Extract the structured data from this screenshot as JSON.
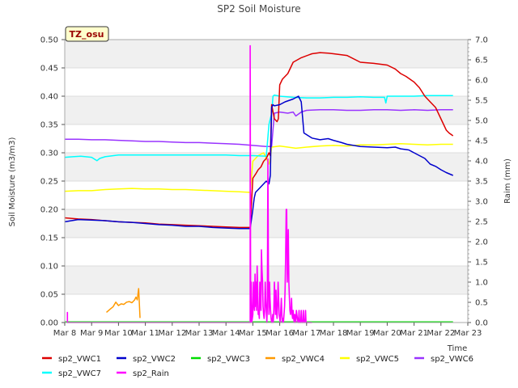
{
  "chart_data": {
    "type": "line",
    "title": "SP2 Soil Moisture",
    "xlabel": "Time",
    "ylabel": "Soil Moisture (m3/m3)",
    "y2label": "Raim (mm)",
    "badge": "TZ_osu",
    "xlim": [
      0,
      15
    ],
    "ylim": [
      0,
      0.5
    ],
    "y2lim": [
      0,
      7.0
    ],
    "x_ticks": [
      0,
      1,
      2,
      3,
      4,
      5,
      6,
      7,
      8,
      9,
      10,
      11,
      12,
      13,
      14,
      15
    ],
    "x_tick_labels": [
      "Mar 8",
      "Mar 9",
      "Mar 10",
      "Mar 11",
      "Mar 12",
      "Mar 13",
      "Mar 14",
      "Mar 15",
      "Mar 16",
      "Mar 17",
      "Mar 18",
      "Mar 19",
      "Mar 20",
      "Mar 21",
      "Mar 22",
      "Mar 23"
    ],
    "y_ticks": [
      0.0,
      0.05,
      0.1,
      0.15,
      0.2,
      0.25,
      0.3,
      0.35,
      0.4,
      0.45,
      0.5
    ],
    "y_tick_labels": [
      "0.00",
      "0.05",
      "0.10",
      "0.15",
      "0.20",
      "0.25",
      "0.30",
      "0.35",
      "0.40",
      "0.45",
      "0.50"
    ],
    "y2_ticks": [
      0.0,
      0.5,
      1.0,
      1.5,
      2.0,
      2.5,
      3.0,
      3.5,
      4.0,
      4.5,
      5.0,
      5.5,
      6.0,
      6.5,
      7.0
    ],
    "y2_tick_labels": [
      "0.0",
      "0.5",
      "1.0",
      "1.5",
      "2.0",
      "2.5",
      "3.0",
      "3.5",
      "4.0",
      "4.5",
      "5.0",
      "5.5",
      "6.0",
      "6.5",
      "7.0"
    ],
    "series": [
      {
        "name": "sp2_VWC1",
        "color": "#dd0000",
        "axis": "left",
        "x": [
          0,
          0.5,
          1.0,
          1.5,
          2.0,
          2.5,
          3.0,
          3.5,
          4.0,
          4.5,
          5.0,
          5.5,
          6.0,
          6.5,
          6.9,
          7.0,
          7.1,
          7.2,
          7.3,
          7.4,
          7.5,
          7.6,
          7.65,
          7.7,
          7.8,
          7.9,
          7.95,
          8.0,
          8.1,
          8.3,
          8.5,
          8.8,
          9.2,
          9.5,
          9.8,
          10.0,
          10.5,
          11.0,
          11.5,
          12.0,
          12.3,
          12.5,
          12.7,
          13.0,
          13.2,
          13.4,
          13.6,
          13.8,
          13.9,
          14.0,
          14.1,
          14.2,
          14.3,
          14.45
        ],
        "y": [
          0.185,
          0.183,
          0.182,
          0.18,
          0.178,
          0.177,
          0.176,
          0.174,
          0.173,
          0.172,
          0.171,
          0.17,
          0.169,
          0.168,
          0.168,
          0.255,
          0.262,
          0.27,
          0.275,
          0.285,
          0.29,
          0.3,
          0.295,
          0.385,
          0.36,
          0.355,
          0.36,
          0.42,
          0.43,
          0.44,
          0.46,
          0.468,
          0.475,
          0.477,
          0.476,
          0.475,
          0.472,
          0.46,
          0.458,
          0.455,
          0.448,
          0.44,
          0.435,
          0.425,
          0.415,
          0.4,
          0.39,
          0.38,
          0.37,
          0.36,
          0.35,
          0.34,
          0.335,
          0.33
        ]
      },
      {
        "name": "sp2_VWC2",
        "color": "#0000cc",
        "axis": "left",
        "x": [
          0,
          0.5,
          1.0,
          1.5,
          2.0,
          2.5,
          3.0,
          3.5,
          4.0,
          4.5,
          5.0,
          5.5,
          6.0,
          6.5,
          6.9,
          7.0,
          7.05,
          7.1,
          7.3,
          7.5,
          7.6,
          7.65,
          7.7,
          7.75,
          7.8,
          8.0,
          8.2,
          8.5,
          8.7,
          8.8,
          8.9,
          9.2,
          9.5,
          9.8,
          10.0,
          10.3,
          10.5,
          11.0,
          11.5,
          12.0,
          12.3,
          12.5,
          12.8,
          13.0,
          13.2,
          13.4,
          13.6,
          13.8,
          14.0,
          14.2,
          14.45
        ],
        "y": [
          0.178,
          0.182,
          0.181,
          0.18,
          0.178,
          0.177,
          0.175,
          0.173,
          0.172,
          0.17,
          0.17,
          0.168,
          0.167,
          0.166,
          0.166,
          0.2,
          0.22,
          0.23,
          0.24,
          0.25,
          0.245,
          0.26,
          0.38,
          0.385,
          0.383,
          0.385,
          0.39,
          0.395,
          0.4,
          0.39,
          0.335,
          0.326,
          0.323,
          0.325,
          0.322,
          0.318,
          0.315,
          0.311,
          0.31,
          0.309,
          0.31,
          0.307,
          0.305,
          0.3,
          0.295,
          0.29,
          0.28,
          0.276,
          0.27,
          0.265,
          0.26
        ]
      },
      {
        "name": "sp2_VWC3",
        "color": "#00dd00",
        "axis": "left",
        "x": [
          0,
          14.45
        ],
        "y": [
          0.001,
          0.001
        ]
      },
      {
        "name": "sp2_VWC4",
        "color": "#ff9900",
        "axis": "left",
        "x": [
          1.55,
          1.7,
          1.8,
          1.9,
          2.0,
          2.1,
          2.2,
          2.3,
          2.4,
          2.5,
          2.6,
          2.65,
          2.7,
          2.75,
          2.78,
          2.8
        ],
        "y": [
          0.018,
          0.024,
          0.028,
          0.036,
          0.03,
          0.033,
          0.032,
          0.036,
          0.037,
          0.035,
          0.04,
          0.045,
          0.04,
          0.06,
          0.03,
          0.008
        ]
      },
      {
        "name": "sp2_VWC5",
        "color": "#ffff00",
        "axis": "left",
        "x": [
          0,
          0.5,
          1.0,
          1.5,
          2.0,
          2.5,
          3.0,
          3.5,
          4.0,
          4.5,
          5.0,
          5.5,
          6.0,
          6.5,
          6.9,
          7.0,
          7.2,
          7.4,
          7.5,
          7.6,
          7.65,
          7.7,
          8.0,
          8.3,
          8.6,
          9.0,
          9.5,
          10.0,
          10.5,
          11.0,
          11.5,
          12.0,
          12.5,
          13.0,
          13.5,
          14.0,
          14.45
        ],
        "y": [
          0.232,
          0.233,
          0.233,
          0.235,
          0.236,
          0.237,
          0.236,
          0.236,
          0.235,
          0.235,
          0.234,
          0.233,
          0.232,
          0.231,
          0.23,
          0.285,
          0.295,
          0.3,
          0.29,
          0.28,
          0.29,
          0.31,
          0.312,
          0.31,
          0.308,
          0.31,
          0.312,
          0.313,
          0.312,
          0.314,
          0.314,
          0.315,
          0.316,
          0.315,
          0.314,
          0.315,
          0.315
        ]
      },
      {
        "name": "sp2_VWC6",
        "color": "#9933ff",
        "axis": "left",
        "x": [
          0,
          0.5,
          1.0,
          1.5,
          2.0,
          2.5,
          3.0,
          3.5,
          4.0,
          4.5,
          5.0,
          5.5,
          6.0,
          6.5,
          7.0,
          7.5,
          7.7,
          7.8,
          8.0,
          8.3,
          8.5,
          8.6,
          8.8,
          9.0,
          9.5,
          10.0,
          10.5,
          11.0,
          11.5,
          12.0,
          12.5,
          13.0,
          13.5,
          14.0,
          14.45
        ],
        "y": [
          0.324,
          0.324,
          0.323,
          0.323,
          0.322,
          0.321,
          0.32,
          0.32,
          0.319,
          0.318,
          0.318,
          0.317,
          0.316,
          0.315,
          0.313,
          0.311,
          0.311,
          0.37,
          0.372,
          0.37,
          0.372,
          0.365,
          0.372,
          0.375,
          0.376,
          0.376,
          0.375,
          0.375,
          0.376,
          0.376,
          0.375,
          0.376,
          0.375,
          0.376,
          0.376
        ]
      },
      {
        "name": "sp2_VWC7",
        "color": "#00ffff",
        "axis": "left",
        "x": [
          0,
          0.3,
          0.6,
          1.0,
          1.2,
          1.3,
          1.5,
          2.0,
          2.5,
          3.0,
          3.5,
          4.0,
          4.5,
          5.0,
          5.5,
          6.0,
          6.5,
          7.0,
          7.5,
          7.6,
          7.7,
          7.75,
          7.8,
          8.0,
          8.5,
          9.0,
          9.5,
          10.0,
          10.5,
          11.0,
          11.5,
          11.9,
          11.95,
          12.0,
          12.5,
          13.0,
          13.5,
          14.0,
          14.45
        ],
        "y": [
          0.292,
          0.293,
          0.294,
          0.292,
          0.286,
          0.29,
          0.293,
          0.296,
          0.296,
          0.296,
          0.296,
          0.296,
          0.296,
          0.296,
          0.296,
          0.296,
          0.295,
          0.295,
          0.294,
          0.35,
          0.37,
          0.4,
          0.402,
          0.4,
          0.398,
          0.397,
          0.397,
          0.398,
          0.398,
          0.399,
          0.398,
          0.398,
          0.388,
          0.4,
          0.4,
          0.4,
          0.401,
          0.401,
          0.401
        ]
      },
      {
        "name": "sp2_Rain",
        "color": "#ff00ff",
        "axis": "right",
        "x": [
          0.1,
          0.1,
          0.1,
          6.9,
          6.9,
          6.92,
          6.94,
          6.96,
          6.96,
          7.0,
          7.02,
          7.04,
          7.06,
          7.08,
          7.1,
          7.12,
          7.14,
          7.16,
          7.18,
          7.2,
          7.22,
          7.24,
          7.26,
          7.28,
          7.3,
          7.32,
          7.34,
          7.36,
          7.38,
          7.4,
          7.42,
          7.44,
          7.46,
          7.48,
          7.5,
          7.52,
          7.54,
          7.56,
          7.58,
          7.6,
          7.62,
          7.64,
          7.66,
          7.68,
          7.7,
          7.72,
          7.74,
          7.76,
          7.78,
          7.8,
          7.82,
          7.84,
          7.86,
          7.88,
          7.9,
          7.92,
          7.94,
          7.96,
          7.98,
          8.0,
          8.02,
          8.04,
          8.06,
          8.08,
          8.1,
          8.12,
          8.14,
          8.16,
          8.18,
          8.2,
          8.22,
          8.24,
          8.26,
          8.28,
          8.3,
          8.32,
          8.34,
          8.36,
          8.38,
          8.4,
          8.42,
          8.44,
          8.46,
          8.48,
          8.5,
          8.52,
          8.54,
          8.56,
          8.58,
          8.6,
          8.62,
          8.64,
          8.66,
          8.68,
          8.7,
          8.72,
          8.74,
          8.76,
          8.78,
          8.8,
          8.82,
          8.84,
          8.86,
          8.88,
          8.9,
          8.92,
          8.94,
          8.96,
          8.98,
          9.0,
          9.02,
          9.04,
          9.06,
          9.08,
          9.1,
          9.12,
          9.14,
          9.16,
          9.18,
          9.2
        ],
        "y": [
          0,
          0.25,
          0,
          0,
          6.85,
          0,
          1.0,
          0.3,
          0,
          0.2,
          1.0,
          0.5,
          0.3,
          1.2,
          0.4,
          1.0,
          0.3,
          1.4,
          0.8,
          0.2,
          0.3,
          0.1,
          1.0,
          0.6,
          0.3,
          1.8,
          1.3,
          1.0,
          0.4,
          0.2,
          0.1,
          0.3,
          1.0,
          0.6,
          0.3,
          0,
          0.4,
          4.05,
          1.0,
          0.2,
          1.0,
          0.6,
          0.3,
          0.1,
          0,
          0,
          0.2,
          0,
          0.3,
          1.0,
          0.7,
          0.2,
          0.8,
          0.3,
          0.1,
          0.4,
          1.0,
          0.6,
          0.2,
          0.1,
          0,
          0.3,
          0.6,
          0.2,
          0,
          0.1,
          0,
          0.2,
          0.4,
          0.8,
          1.6,
          2.8,
          2.8,
          1.0,
          1.6,
          2.3,
          1.0,
          0.6,
          0.3,
          0.2,
          0.3,
          0.6,
          0.2,
          0.1,
          0.3,
          0.1,
          0,
          0.2,
          0.1,
          0,
          0.3,
          0.2,
          0.1,
          0,
          0,
          0.3,
          0,
          0,
          0,
          0.3,
          0,
          0,
          0,
          0.3,
          0,
          0,
          0,
          0.3,
          0,
          0,
          0,
          0,
          0,
          0,
          0,
          0,
          0,
          0,
          0,
          0
        ]
      }
    ]
  }
}
